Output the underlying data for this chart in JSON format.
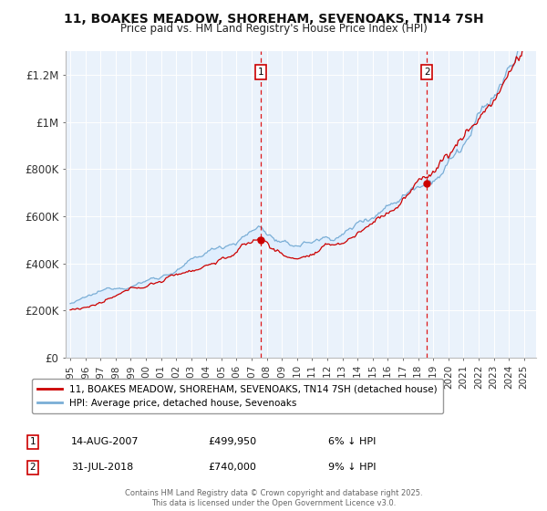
{
  "title": "11, BOAKES MEADOW, SHOREHAM, SEVENOAKS, TN14 7SH",
  "subtitle": "Price paid vs. HM Land Registry's House Price Index (HPI)",
  "ylabel_ticks": [
    0,
    200000,
    400000,
    600000,
    800000,
    1000000,
    1200000
  ],
  "ylabel_labels": [
    "£0",
    "£200K",
    "£400K",
    "£600K",
    "£800K",
    "£1M",
    "£1.2M"
  ],
  "ylim": [
    0,
    1300000
  ],
  "xlim_start": 1994.7,
  "xlim_end": 2025.8,
  "sale1_year": 2007.617,
  "sale1_price": 499950,
  "sale1_label": "1",
  "sale2_year": 2018.581,
  "sale2_price": 740000,
  "sale2_label": "2",
  "legend_line1": "11, BOAKES MEADOW, SHOREHAM, SEVENOAKS, TN14 7SH (detached house)",
  "legend_line2": "HPI: Average price, detached house, Sevenoaks",
  "ann1_date": "14-AUG-2007",
  "ann1_price": "£499,950",
  "ann1_note": "6% ↓ HPI",
  "ann2_date": "31-JUL-2018",
  "ann2_price": "£740,000",
  "ann2_note": "9% ↓ HPI",
  "footer": "Contains HM Land Registry data © Crown copyright and database right 2025.\nThis data is licensed under the Open Government Licence v3.0.",
  "line_red": "#cc0000",
  "line_blue": "#7aaed6",
  "shade_blue": "#ddeeff",
  "bg_plot": "#eaf2fb",
  "grid_color": "#ffffff",
  "title_fontsize": 10,
  "subtitle_fontsize": 8.5
}
